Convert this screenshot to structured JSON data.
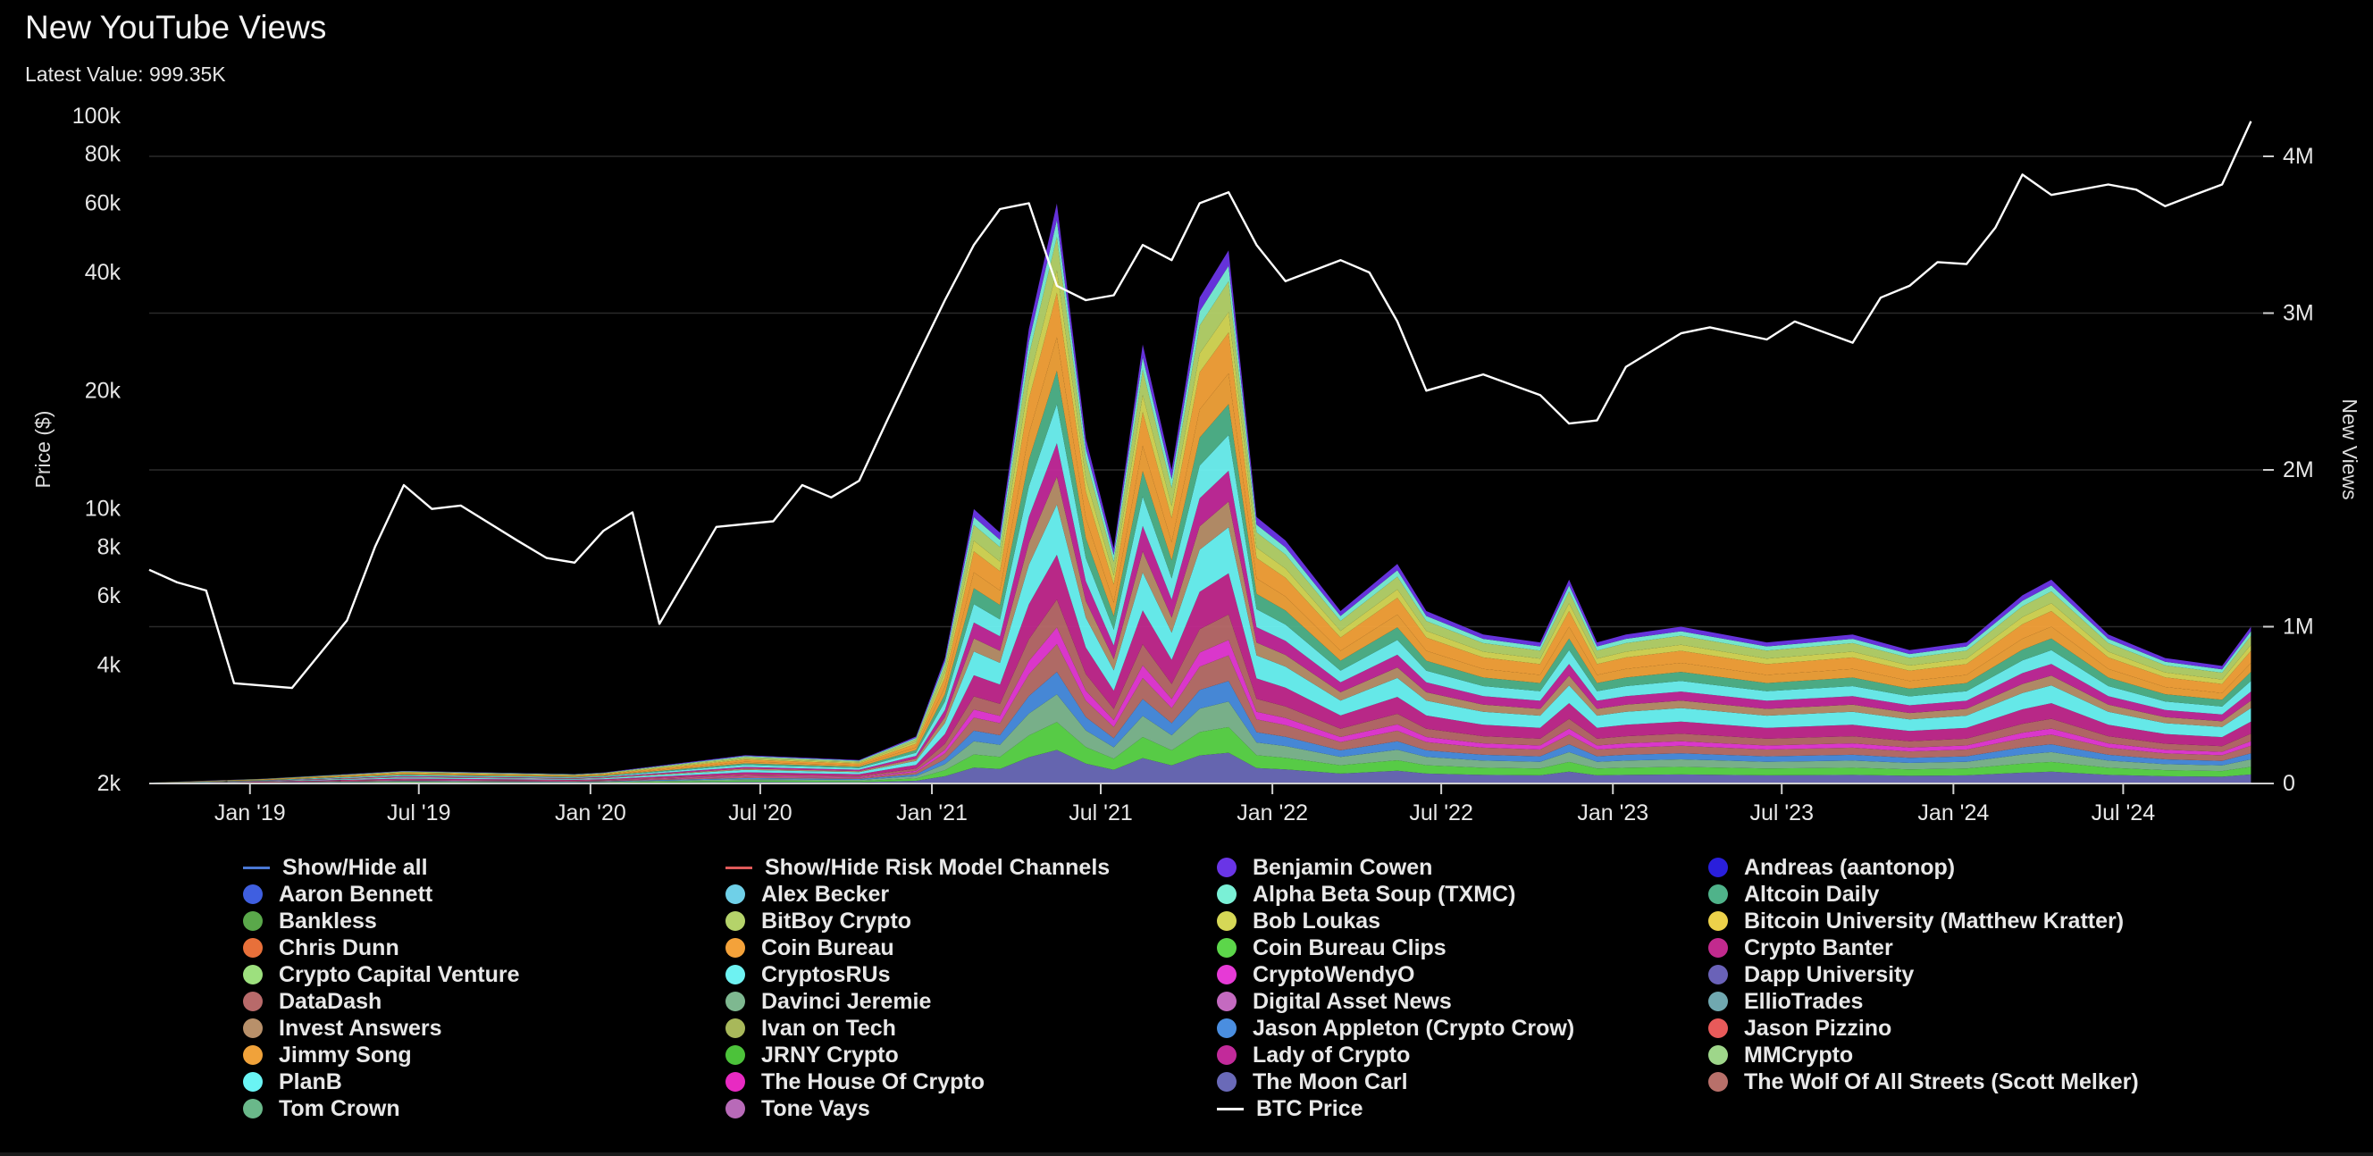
{
  "header": {
    "title": "New YouTube Views",
    "latest_value": "Latest Value: 999.35K"
  },
  "colors": {
    "background": "#000000",
    "btc_line": "#ffffff",
    "gridline": "#2a2a2a",
    "show_all_line": "#4a78d4",
    "risk_model_line": "#e05a5a"
  },
  "chart_data": {
    "type": "area",
    "title": "New YouTube Views",
    "x_axis": {
      "range": [
        "2018-09",
        "2024-11"
      ],
      "ticks": [
        "Jan '19",
        "Jul '19",
        "Jan '20",
        "Jul '20",
        "Jan '21",
        "Jul '21",
        "Jan '22",
        "Jul '22",
        "Jan '23",
        "Jul '23",
        "Jan '24",
        "Jul '24"
      ]
    },
    "y_left": {
      "label": "Price ($)",
      "scale": "log",
      "range": [
        2000,
        100000
      ],
      "ticks": [
        "2k",
        "4k",
        "6k",
        "8k",
        "10k",
        "20k",
        "40k",
        "60k",
        "80k",
        "100k"
      ],
      "tick_values": [
        2000,
        4000,
        6000,
        8000,
        10000,
        20000,
        40000,
        60000,
        80000,
        100000
      ]
    },
    "y_right": {
      "label": "New Views",
      "scale": "linear",
      "range": [
        0,
        4000000
      ],
      "ticks": [
        "0",
        "1M",
        "2M",
        "3M",
        "4M"
      ],
      "tick_values": [
        0,
        1000000,
        2000000,
        3000000,
        4000000
      ]
    },
    "grid": true,
    "legend_position": "bottom",
    "btc_price": {
      "name": "BTC Price",
      "x": [
        "2018-09",
        "2018-10",
        "2018-11",
        "2018-12",
        "2019-02",
        "2019-04",
        "2019-05",
        "2019-06",
        "2019-07",
        "2019-08",
        "2019-10",
        "2019-11",
        "2019-12",
        "2020-01",
        "2020-02",
        "2020-03",
        "2020-05",
        "2020-07",
        "2020-08",
        "2020-09",
        "2020-10",
        "2020-11",
        "2020-12",
        "2021-01",
        "2021-02",
        "2021-03",
        "2021-04",
        "2021-05",
        "2021-06",
        "2021-07",
        "2021-08",
        "2021-09",
        "2021-10",
        "2021-11",
        "2021-12",
        "2022-01",
        "2022-03",
        "2022-04",
        "2022-05",
        "2022-06",
        "2022-08",
        "2022-10",
        "2022-11",
        "2022-12",
        "2023-01",
        "2023-03",
        "2023-04",
        "2023-06",
        "2023-07",
        "2023-09",
        "2023-10",
        "2023-11",
        "2023-12",
        "2024-01",
        "2024-02",
        "2024-03",
        "2024-04",
        "2024-06",
        "2024-07",
        "2024-08",
        "2024-09",
        "2024-10",
        "2024-11"
      ],
      "y": [
        7000,
        6500,
        6200,
        3600,
        3500,
        5200,
        8000,
        11500,
        10000,
        10200,
        8300,
        7500,
        7300,
        8800,
        9800,
        5100,
        9000,
        9300,
        11500,
        10700,
        11800,
        17000,
        24000,
        34000,
        47000,
        58000,
        60000,
        37000,
        34000,
        35000,
        47000,
        43000,
        60000,
        64000,
        47000,
        38000,
        43000,
        40000,
        30000,
        20000,
        22000,
        19500,
        16500,
        16800,
        23000,
        28000,
        29000,
        27000,
        30000,
        26500,
        34500,
        37000,
        42500,
        42000,
        52000,
        71000,
        63000,
        67000,
        65000,
        59000,
        63000,
        67000,
        97000
      ]
    },
    "stacked_views": {
      "x": [
        "2018-09",
        "2019-01",
        "2019-06",
        "2019-12",
        "2020-01",
        "2020-06",
        "2020-10",
        "2020-12",
        "2021-01",
        "2021-02",
        "2021-03",
        "2021-04",
        "2021-05",
        "2021-06",
        "2021-07",
        "2021-08",
        "2021-09",
        "2021-10",
        "2021-11",
        "2021-12",
        "2022-01",
        "2022-03",
        "2022-05",
        "2022-06",
        "2022-08",
        "2022-10",
        "2022-11",
        "2022-12",
        "2023-01",
        "2023-03",
        "2023-06",
        "2023-09",
        "2023-11",
        "2024-01",
        "2024-03",
        "2024-04",
        "2024-06",
        "2024-08",
        "2024-10",
        "2024-11"
      ],
      "total": [
        5000,
        30000,
        80000,
        60000,
        70000,
        180000,
        150000,
        300000,
        800000,
        1750000,
        1600000,
        2900000,
        3700000,
        2200000,
        1500000,
        2800000,
        2000000,
        3100000,
        3400000,
        1700000,
        1550000,
        1100000,
        1400000,
        1100000,
        950000,
        900000,
        1300000,
        900000,
        950000,
        1000000,
        900000,
        950000,
        850000,
        900000,
        1200000,
        1300000,
        950000,
        800000,
        750000,
        1000000
      ]
    },
    "series": [
      {
        "name": "Benjamin Cowen",
        "color": "#6a35e6"
      },
      {
        "name": "Andreas (aantonop)",
        "color": "#2a1fdc"
      },
      {
        "name": "Aaron Bennett",
        "color": "#3f5fe0"
      },
      {
        "name": "Alex Becker",
        "color": "#6fd0e8"
      },
      {
        "name": "Alpha Beta Soup (TXMC)",
        "color": "#7af0d6"
      },
      {
        "name": "Altcoin Daily",
        "color": "#4fb38a"
      },
      {
        "name": "Bankless",
        "color": "#5aa84a"
      },
      {
        "name": "BitBoy Crypto",
        "color": "#b5d36a"
      },
      {
        "name": "Bob Loukas",
        "color": "#d6d856"
      },
      {
        "name": "Bitcoin University (Matthew Kratter)",
        "color": "#ecd14a"
      },
      {
        "name": "Chris Dunn",
        "color": "#e8703a"
      },
      {
        "name": "Coin Bureau",
        "color": "#f4a23a"
      },
      {
        "name": "Coin Bureau Clips",
        "color": "#5cd64a"
      },
      {
        "name": "Crypto Banter",
        "color": "#c22a8e"
      },
      {
        "name": "Crypto Capital Venture",
        "color": "#9de07e"
      },
      {
        "name": "CryptosRUs",
        "color": "#6ef2f2"
      },
      {
        "name": "CryptoWendyO",
        "color": "#e63ad6"
      },
      {
        "name": "Dapp University",
        "color": "#6a62b8"
      },
      {
        "name": "DataDash",
        "color": "#b86a6a"
      },
      {
        "name": "Davinci Jeremie",
        "color": "#7eb890"
      },
      {
        "name": "Digital Asset News",
        "color": "#c46ac0"
      },
      {
        "name": "EllioTrades",
        "color": "#70a8b0"
      },
      {
        "name": "Invest Answers",
        "color": "#b8906a"
      },
      {
        "name": "Ivan on Tech",
        "color": "#a8b85a"
      },
      {
        "name": "Jason Appleton (Crypto Crow)",
        "color": "#4a8ee0"
      },
      {
        "name": "Jason Pizzino",
        "color": "#e85a5a"
      },
      {
        "name": "Jimmy Song",
        "color": "#f0a23a"
      },
      {
        "name": "JRNY Crypto",
        "color": "#4cc23a"
      },
      {
        "name": "Lady of Crypto",
        "color": "#c22a9a"
      },
      {
        "name": "MMCrypto",
        "color": "#9ed68a"
      },
      {
        "name": "PlanB",
        "color": "#6af4f4"
      },
      {
        "name": "The House Of Crypto",
        "color": "#e82ac2"
      },
      {
        "name": "The Moon Carl",
        "color": "#6a6ab8"
      },
      {
        "name": "The Wolf Of All Streets (Scott Melker)",
        "color": "#b8706a"
      },
      {
        "name": "Tom Crown",
        "color": "#6ab88a"
      },
      {
        "name": "Tone Vays",
        "color": "#b86ab8"
      }
    ],
    "stack_order": [
      "The Moon Carl",
      "Coin Bureau Clips",
      "Davinci Jeremie",
      "Jason Appleton (Crypto Crow)",
      "The Wolf Of All Streets (Scott Melker)",
      "CryptoWendyO",
      "DataDash",
      "Crypto Banter",
      "PlanB",
      "Invest Answers",
      "Lady of Crypto",
      "CryptosRUs",
      "Altcoin Daily",
      "Jimmy Song",
      "Coin Bureau",
      "Bob Loukas",
      "BitBoy Crypto",
      "Alpha Beta Soup (TXMC)",
      "Benjamin Cowen"
    ],
    "stack_weights": [
      0.06,
      0.05,
      0.05,
      0.04,
      0.05,
      0.03,
      0.05,
      0.08,
      0.09,
      0.05,
      0.06,
      0.07,
      0.06,
      0.06,
      0.08,
      0.04,
      0.06,
      0.03,
      0.03
    ]
  },
  "legend": {
    "items": [
      {
        "label": "Show/Hide all",
        "kind": "line",
        "color": "#4a78d4"
      },
      {
        "label": "Show/Hide Risk Model Channels",
        "kind": "line",
        "color": "#e05a5a"
      },
      {
        "label": "Benjamin Cowen",
        "kind": "dot",
        "color": "#6a35e6"
      },
      {
        "label": "Andreas (aantonop)",
        "kind": "dot",
        "color": "#2a1fdc"
      },
      {
        "label": "Aaron Bennett",
        "kind": "dot",
        "color": "#3f5fe0"
      },
      {
        "label": "Alex Becker",
        "kind": "dot",
        "color": "#6fd0e8"
      },
      {
        "label": "Alpha Beta Soup (TXMC)",
        "kind": "dot",
        "color": "#7af0d6"
      },
      {
        "label": "Altcoin Daily",
        "kind": "dot",
        "color": "#4fb38a"
      },
      {
        "label": "Bankless",
        "kind": "dot",
        "color": "#5aa84a"
      },
      {
        "label": "BitBoy Crypto",
        "kind": "dot",
        "color": "#b5d36a"
      },
      {
        "label": "Bob Loukas",
        "kind": "dot",
        "color": "#d6d856"
      },
      {
        "label": "Bitcoin University (Matthew Kratter)",
        "kind": "dot",
        "color": "#ecd14a"
      },
      {
        "label": "Chris Dunn",
        "kind": "dot",
        "color": "#e8703a"
      },
      {
        "label": "Coin Bureau",
        "kind": "dot",
        "color": "#f4a23a"
      },
      {
        "label": "Coin Bureau Clips",
        "kind": "dot",
        "color": "#5cd64a"
      },
      {
        "label": "Crypto Banter",
        "kind": "dot",
        "color": "#c22a8e"
      },
      {
        "label": "Crypto Capital Venture",
        "kind": "dot",
        "color": "#9de07e"
      },
      {
        "label": "CryptosRUs",
        "kind": "dot",
        "color": "#6ef2f2"
      },
      {
        "label": "CryptoWendyO",
        "kind": "dot",
        "color": "#e63ad6"
      },
      {
        "label": "Dapp University",
        "kind": "dot",
        "color": "#6a62b8"
      },
      {
        "label": "DataDash",
        "kind": "dot",
        "color": "#b86a6a"
      },
      {
        "label": "Davinci Jeremie",
        "kind": "dot",
        "color": "#7eb890"
      },
      {
        "label": "Digital Asset News",
        "kind": "dot",
        "color": "#c46ac0"
      },
      {
        "label": "EllioTrades",
        "kind": "dot",
        "color": "#70a8b0"
      },
      {
        "label": "Invest Answers",
        "kind": "dot",
        "color": "#b8906a"
      },
      {
        "label": "Ivan on Tech",
        "kind": "dot",
        "color": "#a8b85a"
      },
      {
        "label": "Jason Appleton (Crypto Crow)",
        "kind": "dot",
        "color": "#4a8ee0"
      },
      {
        "label": "Jason Pizzino",
        "kind": "dot",
        "color": "#e85a5a"
      },
      {
        "label": "Jimmy Song",
        "kind": "dot",
        "color": "#f0a23a"
      },
      {
        "label": "JRNY Crypto",
        "kind": "dot",
        "color": "#4cc23a"
      },
      {
        "label": "Lady of Crypto",
        "kind": "dot",
        "color": "#c22a9a"
      },
      {
        "label": "MMCrypto",
        "kind": "dot",
        "color": "#9ed68a"
      },
      {
        "label": "PlanB",
        "kind": "dot",
        "color": "#6af4f4"
      },
      {
        "label": "The House Of Crypto",
        "kind": "dot",
        "color": "#e82ac2"
      },
      {
        "label": "The Moon Carl",
        "kind": "dot",
        "color": "#6a6ab8"
      },
      {
        "label": "The Wolf Of All Streets (Scott Melker)",
        "kind": "dot",
        "color": "#b8706a"
      },
      {
        "label": "Tom Crown",
        "kind": "dot",
        "color": "#6ab88a"
      },
      {
        "label": "Tone Vays",
        "kind": "dot",
        "color": "#b86ab8"
      },
      {
        "label": "BTC Price",
        "kind": "line",
        "color": "#ffffff"
      }
    ]
  }
}
